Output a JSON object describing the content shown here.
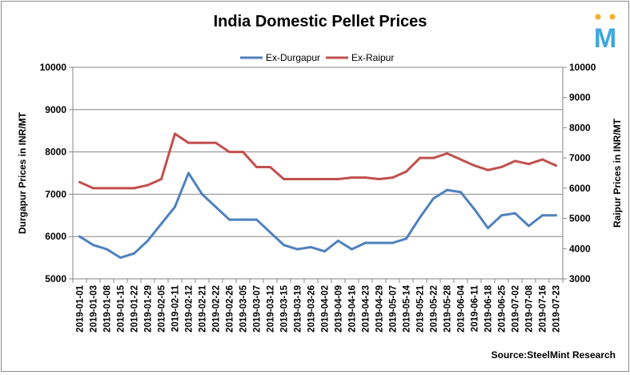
{
  "chart_data": {
    "type": "line",
    "title": "India Domestic Pellet Prices",
    "ylabel": "Durgapur Prices in INR/MT",
    "y2label": "Raipur Prices in INR/MT",
    "source": "Source:SteelMint Research",
    "logo_text": "M",
    "ylim": [
      5000,
      10000
    ],
    "yticks": [
      "5000",
      "6000",
      "7000",
      "8000",
      "9000",
      "10000"
    ],
    "y2lim": [
      3000,
      10000
    ],
    "y2ticks": [
      "3000",
      "4000",
      "5000",
      "6000",
      "7000",
      "8000",
      "9000",
      "10000"
    ],
    "grid": true,
    "legend_position": "top-center",
    "x": [
      "2019-01-01",
      "2019-01-03",
      "2019-01-08",
      "2019-01-15",
      "2019-01-22",
      "2019-01-29",
      "2019-02-05",
      "2019-02-11",
      "2019-02-12",
      "2019-02-21",
      "2019-02-22",
      "2019-02-26",
      "2019-03-05",
      "2019-03-07",
      "2019-03-12",
      "2019-03-15",
      "2019-03-19",
      "2019-03-26",
      "2019-04-02",
      "2019-04-09",
      "2019-04-16",
      "2019-04-23",
      "2019-04-29",
      "2019-05-07",
      "2019-05-14",
      "2019-05-21",
      "2019-05-22",
      "2019-05-28",
      "2019-06-04",
      "2019-06-11",
      "2019-06-18",
      "2019-06-25",
      "2019-07-02",
      "2019-07-08",
      "2019-07-16",
      "2019-07-23"
    ],
    "series": [
      {
        "name": "Ex-Durgapur",
        "color": "#4f81bd",
        "axis": "left",
        "values": [
          6000,
          5800,
          5700,
          5500,
          5600,
          5900,
          6300,
          6700,
          7500,
          7000,
          6700,
          6400,
          6400,
          6400,
          6100,
          5800,
          5700,
          5750,
          5650,
          5900,
          5700,
          5850,
          5850,
          5850,
          5950,
          6450,
          6900,
          7100,
          7050,
          6650,
          6200,
          6500,
          6550,
          6250,
          6500,
          6500
        ]
      },
      {
        "name": "Ex-Raipur",
        "color": "#c0504d",
        "axis": "right",
        "values": [
          6200,
          6000,
          6000,
          6000,
          6000,
          6100,
          6300,
          7800,
          7500,
          7500,
          7500,
          7200,
          7200,
          6700,
          6700,
          6300,
          6300,
          6300,
          6300,
          6300,
          6350,
          6350,
          6300,
          6350,
          6550,
          7000,
          7000,
          7150,
          6950,
          6750,
          6600,
          6700,
          6900,
          6800,
          6950,
          6750
        ]
      }
    ]
  }
}
